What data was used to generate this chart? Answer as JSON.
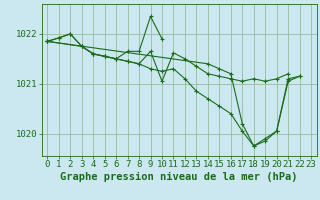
{
  "background_color": "#cbe8f0",
  "plot_bg_color": "#cbe8f0",
  "grid_color": "#99bb99",
  "line_color": "#1a6b1a",
  "xlabel": "Graphe pression niveau de la mer (hPa)",
  "xlabel_fontsize": 7.5,
  "tick_fontsize": 6.5,
  "ylim": [
    1019.55,
    1022.6
  ],
  "xlim": [
    -0.5,
    23.5
  ],
  "yticks": [
    1020,
    1021,
    1022
  ],
  "xticks": [
    0,
    1,
    2,
    3,
    4,
    5,
    6,
    7,
    8,
    9,
    10,
    11,
    12,
    13,
    14,
    15,
    16,
    17,
    18,
    19,
    20,
    21,
    22,
    23
  ],
  "series": [
    {
      "x": [
        0,
        1,
        2,
        3,
        4,
        5,
        6,
        7,
        8,
        9,
        10,
        11,
        12,
        13,
        14,
        15,
        16,
        17,
        18,
        19,
        20,
        21
      ],
      "y": [
        1021.85,
        1021.92,
        1022.0,
        1021.75,
        1021.6,
        1021.55,
        1021.5,
        1021.45,
        1021.4,
        1021.65,
        1021.05,
        1021.62,
        1021.5,
        1021.35,
        1021.2,
        1021.15,
        1021.1,
        1021.05,
        1021.1,
        1021.05,
        1021.1,
        1021.2
      ]
    },
    {
      "x": [
        0,
        1,
        2,
        3,
        4,
        5,
        6,
        7,
        8,
        9,
        10
      ],
      "y": [
        1021.85,
        1021.92,
        1022.0,
        1021.75,
        1021.6,
        1021.55,
        1021.5,
        1021.65,
        1021.65,
        1022.35,
        1021.9
      ]
    },
    {
      "x": [
        0,
        3,
        4,
        5,
        6,
        7,
        8,
        9,
        10,
        11,
        12,
        13,
        14,
        15,
        16,
        17,
        18,
        19,
        20,
        21,
        22
      ],
      "y": [
        1021.85,
        1021.75,
        1021.6,
        1021.55,
        1021.5,
        1021.45,
        1021.4,
        1021.3,
        1021.25,
        1021.3,
        1021.1,
        1020.85,
        1020.7,
        1020.55,
        1020.4,
        1020.05,
        1019.75,
        1019.85,
        1020.05,
        1021.1,
        1021.15
      ]
    },
    {
      "x": [
        0,
        14,
        15,
        16,
        17,
        18,
        19,
        20,
        21,
        22
      ],
      "y": [
        1021.85,
        1021.4,
        1021.3,
        1021.2,
        1020.2,
        1019.75,
        1019.9,
        1020.05,
        1021.05,
        1021.15
      ]
    }
  ]
}
